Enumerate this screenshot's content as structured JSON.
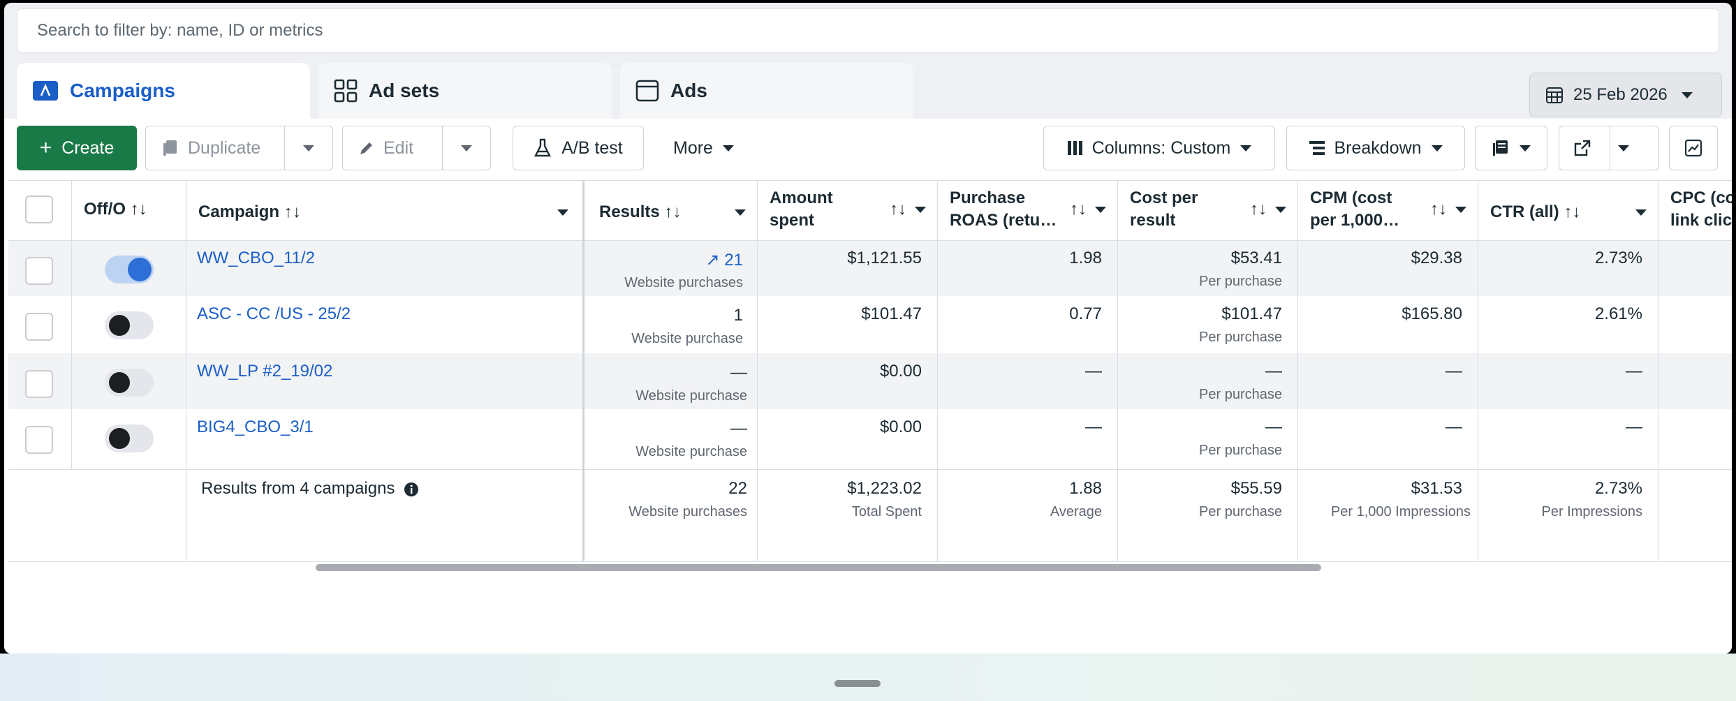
{
  "search": {
    "placeholder": "Search to filter by: name, ID or metrics"
  },
  "tabs": [
    {
      "label": "Campaigns",
      "icon": "campaigns-icon",
      "active": true
    },
    {
      "label": "Ad sets",
      "icon": "ad-sets-icon",
      "active": false
    },
    {
      "label": "Ads",
      "icon": "ads-icon",
      "active": false
    }
  ],
  "date_range": {
    "label": "25 Feb 2026",
    "icon": "calendar-icon"
  },
  "toolbar": {
    "create": "Create",
    "duplicate": "Duplicate",
    "edit": "Edit",
    "ab_test": "A/B test",
    "more": "More",
    "columns": "Columns: Custom",
    "breakdown": "Breakdown"
  },
  "columns": {
    "offon": "Off/O",
    "campaign": "Campaign",
    "results": "Results",
    "amount_l1": "Amount",
    "amount_l2": "spent",
    "roas_l1": "Purchase",
    "roas_l2": "ROAS (retu…",
    "cpr_l1": "Cost per",
    "cpr_l2": "result",
    "cpm_l1": "CPM (cost",
    "cpm_l2": "per 1,000…",
    "ctr": "CTR (all)",
    "cpc_l1": "CPC (co",
    "cpc_l2": "link clicl"
  },
  "sort_glyph": "↑↓",
  "rows": [
    {
      "name": "WW_CBO_11/2",
      "on": true,
      "results": "21",
      "results_trend": "↗",
      "results_sub": "Website purchases",
      "amount": "$1,121.55",
      "roas": "1.98",
      "cpr": "$53.41",
      "cpr_sub": "Per purchase",
      "cpm": "$29.38",
      "ctr": "2.73%"
    },
    {
      "name": "ASC - CC /US - 25/2",
      "on": false,
      "results": "1",
      "results_trend": "",
      "results_sub": "Website purchase",
      "amount": "$101.47",
      "roas": "0.77",
      "cpr": "$101.47",
      "cpr_sub": "Per purchase",
      "cpm": "$165.80",
      "ctr": "2.61%"
    },
    {
      "name": "WW_LP #2_19/02",
      "on": false,
      "results": "—",
      "results_trend": "",
      "results_sub": "Website purchase",
      "amount": "$0.00",
      "roas": "—",
      "cpr": "—",
      "cpr_sub": "Per purchase",
      "cpm": "—",
      "ctr": "—"
    },
    {
      "name": "BIG4_CBO_3/1",
      "on": false,
      "results": "—",
      "results_trend": "",
      "results_sub": "Website purchase",
      "amount": "$0.00",
      "roas": "—",
      "cpr": "—",
      "cpr_sub": "Per purchase",
      "cpm": "—",
      "ctr": "—"
    }
  ],
  "totals": {
    "label": "Results from 4 campaigns",
    "results": "22",
    "results_sub": "Website purchases",
    "amount": "$1,223.02",
    "amount_sub": "Total Spent",
    "roas": "1.88",
    "roas_sub": "Average",
    "cpr": "$55.59",
    "cpr_sub": "Per purchase",
    "cpm": "$31.53",
    "cpm_sub": "Per 1,000 Impressions",
    "ctr": "2.73%",
    "ctr_sub": "Per Impressions"
  },
  "colors": {
    "accent": "#1a5ec8",
    "create": "#1a7a47"
  }
}
